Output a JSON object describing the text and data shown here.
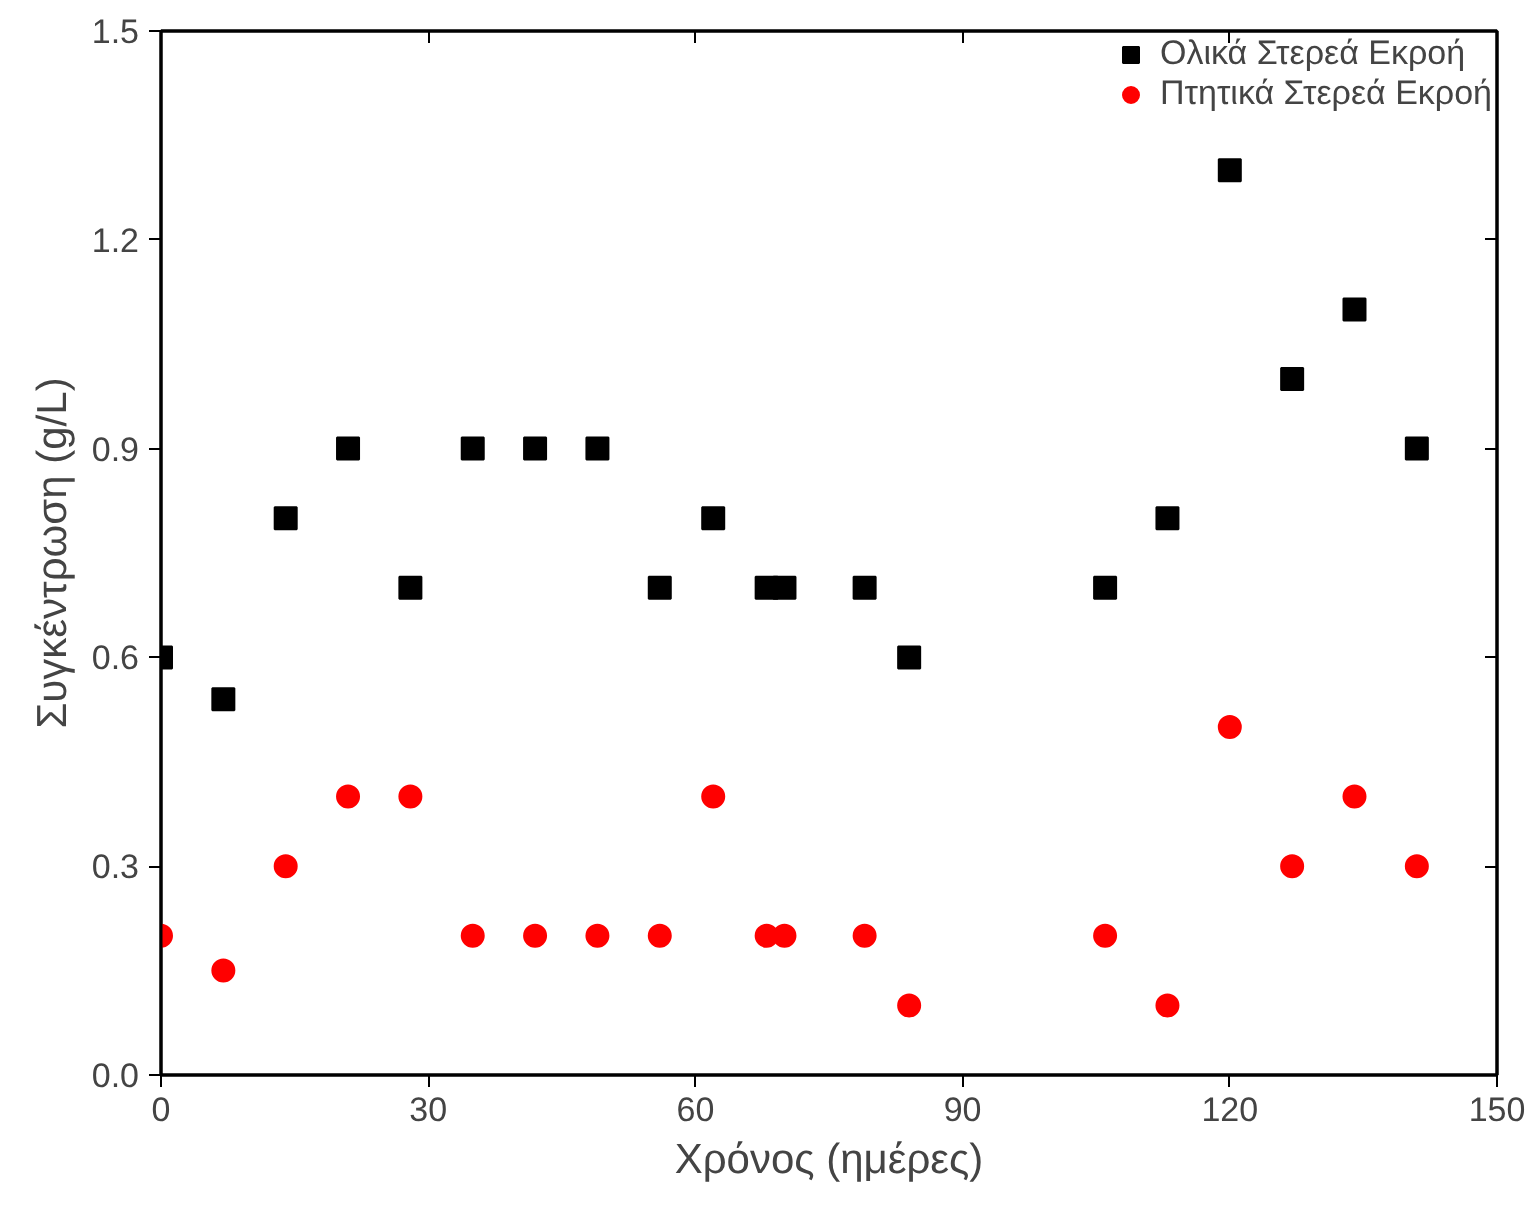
{
  "chart_data": {
    "type": "scatter",
    "xlabel": "Χρόνος (ημέρες)",
    "ylabel": "Συγκέντρωση (g/L)",
    "xlim": [
      0,
      150
    ],
    "xticks": [
      0,
      30,
      60,
      90,
      120,
      150
    ],
    "ylim": [
      0,
      1.5
    ],
    "yticks": [
      {
        "value": 0,
        "label": "0.0"
      },
      0.3,
      0.6,
      0.9,
      1.2,
      1.5
    ],
    "legend": "top right",
    "grid": false,
    "series": [
      {
        "name": "Ολικά Στερεά Εκροή",
        "color": "#000000",
        "marker": "square",
        "x": [
          0,
          7,
          14,
          21,
          28,
          35,
          42,
          49,
          56,
          62,
          68,
          70,
          79,
          84,
          106,
          113,
          120,
          127,
          134,
          141
        ],
        "values": [
          0.6,
          0.54,
          0.8,
          0.9,
          0.7,
          0.9,
          0.9,
          0.9,
          0.7,
          0.8,
          0.7,
          0.7,
          0.7,
          0.6,
          0.7,
          0.8,
          1.3,
          1.0,
          1.1,
          0.9
        ]
      },
      {
        "name": "Πτητικά Στερεά Εκροή",
        "color": "#ff0000",
        "marker": "circle",
        "x": [
          0,
          7,
          14,
          21,
          28,
          35,
          42,
          49,
          56,
          62,
          68,
          70,
          79,
          84,
          106,
          113,
          120,
          127,
          134,
          141
        ],
        "values": [
          0.2,
          0.15,
          0.3,
          0.4,
          0.4,
          0.2,
          0.2,
          0.2,
          0.2,
          0.4,
          0.2,
          0.2,
          0.2,
          0.1,
          0.2,
          0.1,
          0.5,
          0.3,
          0.4,
          0.3
        ]
      }
    ]
  }
}
